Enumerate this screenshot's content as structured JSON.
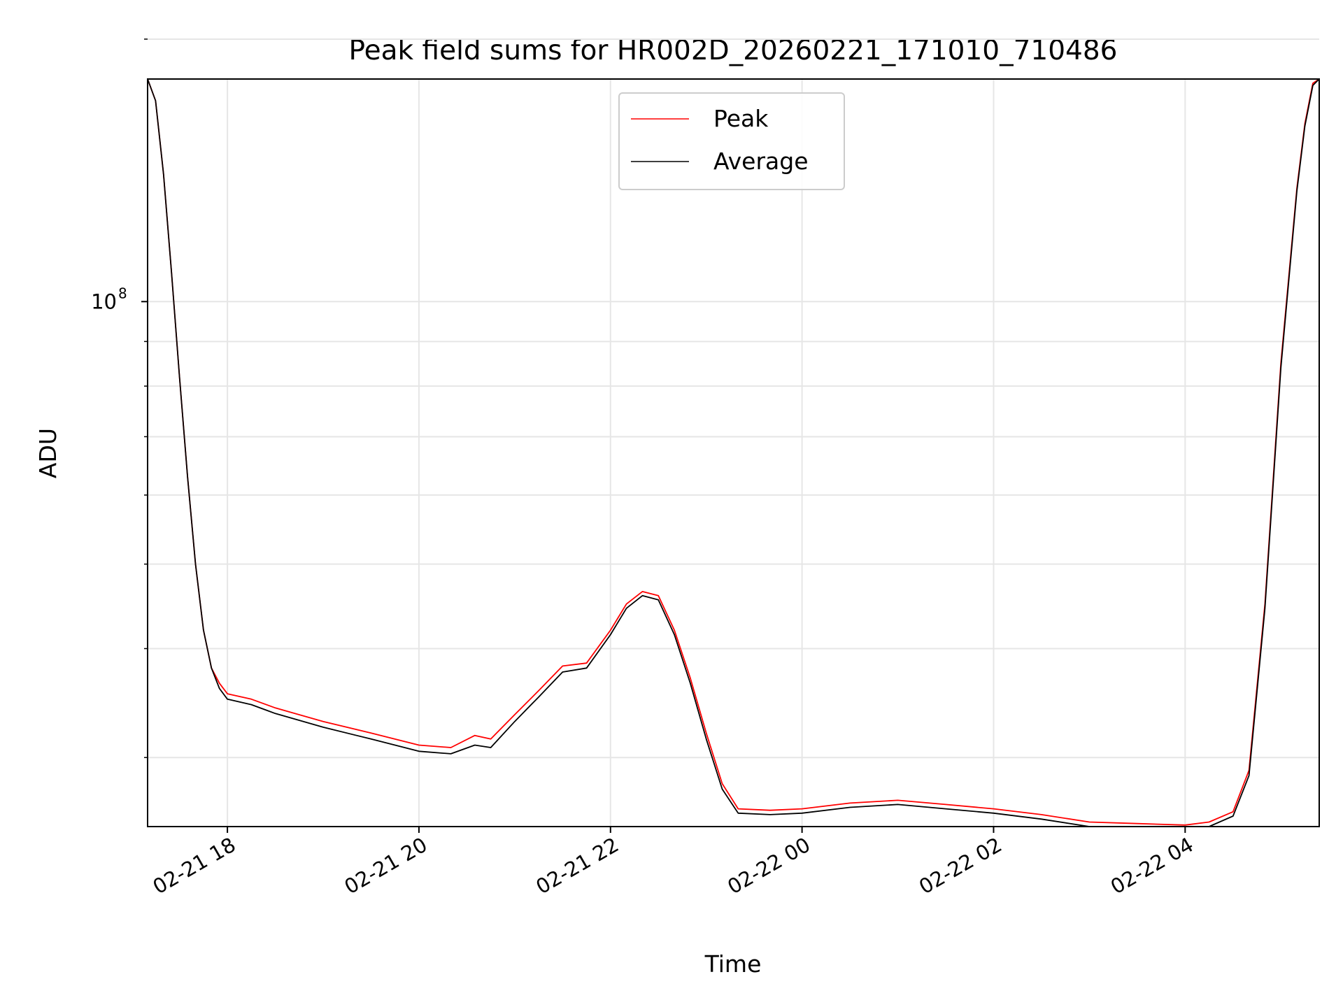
{
  "chart_data": {
    "type": "line",
    "title": "Peak field sums for HR002D_20260221_171010_710486",
    "xlabel": "Time",
    "ylabel": "ADU",
    "y_scale": "log",
    "ylim": [
      25000000,
      180000000
    ],
    "xlim": [
      "2026-02-21T17:10:00",
      "2026-02-22T05:24:00"
    ],
    "x_ticks": [
      {
        "time": "2026-02-21T18:00:00",
        "label": "02-21 18"
      },
      {
        "time": "2026-02-21T20:00:00",
        "label": "02-21 20"
      },
      {
        "time": "2026-02-21T22:00:00",
        "label": "02-21 22"
      },
      {
        "time": "2026-02-22T00:00:00",
        "label": "02-22 00"
      },
      {
        "time": "2026-02-22T02:00:00",
        "label": "02-22 02"
      },
      {
        "time": "2026-02-22T04:00:00",
        "label": "02-22 04"
      }
    ],
    "y_major_ticks": [
      {
        "value": 100000000,
        "base": "10",
        "exp": "8"
      }
    ],
    "y_minor_ticks": [
      30000000,
      40000000,
      50000000,
      60000000,
      70000000,
      80000000,
      90000000,
      200000000
    ],
    "grid": true,
    "legend_position": "top-center",
    "series": [
      {
        "name": "Peak",
        "color": "#ff0000",
        "x": [
          "2026-02-21T17:10:00",
          "2026-02-21T17:15:00",
          "2026-02-21T17:20:00",
          "2026-02-21T17:25:00",
          "2026-02-21T17:30:00",
          "2026-02-21T17:35:00",
          "2026-02-21T17:40:00",
          "2026-02-21T17:45:00",
          "2026-02-21T17:50:00",
          "2026-02-21T17:55:00",
          "2026-02-21T18:00:00",
          "2026-02-21T18:15:00",
          "2026-02-21T18:30:00",
          "2026-02-21T19:00:00",
          "2026-02-21T19:30:00",
          "2026-02-21T20:00:00",
          "2026-02-21T20:20:00",
          "2026-02-21T20:35:00",
          "2026-02-21T20:45:00",
          "2026-02-21T21:00:00",
          "2026-02-21T21:15:00",
          "2026-02-21T21:30:00",
          "2026-02-21T21:45:00",
          "2026-02-21T22:00:00",
          "2026-02-21T22:10:00",
          "2026-02-21T22:20:00",
          "2026-02-21T22:30:00",
          "2026-02-21T22:40:00",
          "2026-02-21T22:50:00",
          "2026-02-21T23:00:00",
          "2026-02-21T23:10:00",
          "2026-02-21T23:20:00",
          "2026-02-21T23:40:00",
          "2026-02-22T00:00:00",
          "2026-02-22T00:30:00",
          "2026-02-22T01:00:00",
          "2026-02-22T01:30:00",
          "2026-02-22T02:00:00",
          "2026-02-22T02:30:00",
          "2026-02-22T03:00:00",
          "2026-02-22T03:30:00",
          "2026-02-22T04:00:00",
          "2026-02-22T04:15:00",
          "2026-02-22T04:30:00",
          "2026-02-22T04:40:00",
          "2026-02-22T04:50:00",
          "2026-02-22T05:00:00",
          "2026-02-22T05:10:00",
          "2026-02-22T05:15:00",
          "2026-02-22T05:20:00",
          "2026-02-22T05:24:00"
        ],
        "y": [
          180000000,
          170000000,
          140000000,
          108000000,
          82000000,
          63000000,
          50000000,
          42000000,
          38000000,
          36500000,
          35500000,
          35000000,
          34200000,
          33000000,
          32000000,
          31000000,
          30800000,
          31800000,
          31500000,
          33600000,
          35800000,
          38200000,
          38500000,
          42000000,
          45000000,
          46500000,
          46000000,
          42000000,
          37000000,
          32000000,
          28000000,
          26200000,
          26100000,
          26200000,
          26600000,
          26800000,
          26500000,
          26200000,
          25800000,
          25300000,
          25200000,
          25100000,
          25300000,
          26000000,
          29000000,
          45000000,
          85000000,
          135000000,
          160000000,
          178000000,
          180000000
        ]
      },
      {
        "name": "Average",
        "color": "#000000",
        "x": [
          "2026-02-21T17:10:00",
          "2026-02-21T17:15:00",
          "2026-02-21T17:20:00",
          "2026-02-21T17:25:00",
          "2026-02-21T17:30:00",
          "2026-02-21T17:35:00",
          "2026-02-21T17:40:00",
          "2026-02-21T17:45:00",
          "2026-02-21T17:50:00",
          "2026-02-21T17:55:00",
          "2026-02-21T18:00:00",
          "2026-02-21T18:15:00",
          "2026-02-21T18:30:00",
          "2026-02-21T19:00:00",
          "2026-02-21T19:30:00",
          "2026-02-21T20:00:00",
          "2026-02-21T20:20:00",
          "2026-02-21T20:35:00",
          "2026-02-21T20:45:00",
          "2026-02-21T21:00:00",
          "2026-02-21T21:15:00",
          "2026-02-21T21:30:00",
          "2026-02-21T21:45:00",
          "2026-02-21T22:00:00",
          "2026-02-21T22:10:00",
          "2026-02-21T22:20:00",
          "2026-02-21T22:30:00",
          "2026-02-21T22:40:00",
          "2026-02-21T22:50:00",
          "2026-02-21T23:00:00",
          "2026-02-21T23:10:00",
          "2026-02-21T23:20:00",
          "2026-02-21T23:40:00",
          "2026-02-22T00:00:00",
          "2026-02-22T00:30:00",
          "2026-02-22T01:00:00",
          "2026-02-22T01:30:00",
          "2026-02-22T02:00:00",
          "2026-02-22T02:30:00",
          "2026-02-22T03:00:00",
          "2026-02-22T03:30:00",
          "2026-02-22T04:00:00",
          "2026-02-22T04:15:00",
          "2026-02-22T04:30:00",
          "2026-02-22T04:40:00",
          "2026-02-22T04:50:00",
          "2026-02-22T05:00:00",
          "2026-02-22T05:10:00",
          "2026-02-22T05:15:00",
          "2026-02-22T05:20:00",
          "2026-02-22T05:24:00"
        ],
        "y": [
          180000000,
          170000000,
          140000000,
          108000000,
          82000000,
          63000000,
          50000000,
          42000000,
          38000000,
          36000000,
          35000000,
          34500000,
          33700000,
          32500000,
          31500000,
          30500000,
          30300000,
          31000000,
          30800000,
          33000000,
          35200000,
          37600000,
          38000000,
          41500000,
          44500000,
          46000000,
          45500000,
          41500000,
          36500000,
          31500000,
          27600000,
          25900000,
          25800000,
          25900000,
          26300000,
          26500000,
          26200000,
          25900000,
          25500000,
          25000000,
          24900000,
          24900000,
          25000000,
          25700000,
          28600000,
          44500000,
          84000000,
          134000000,
          159000000,
          177000000,
          180000000
        ]
      }
    ]
  }
}
